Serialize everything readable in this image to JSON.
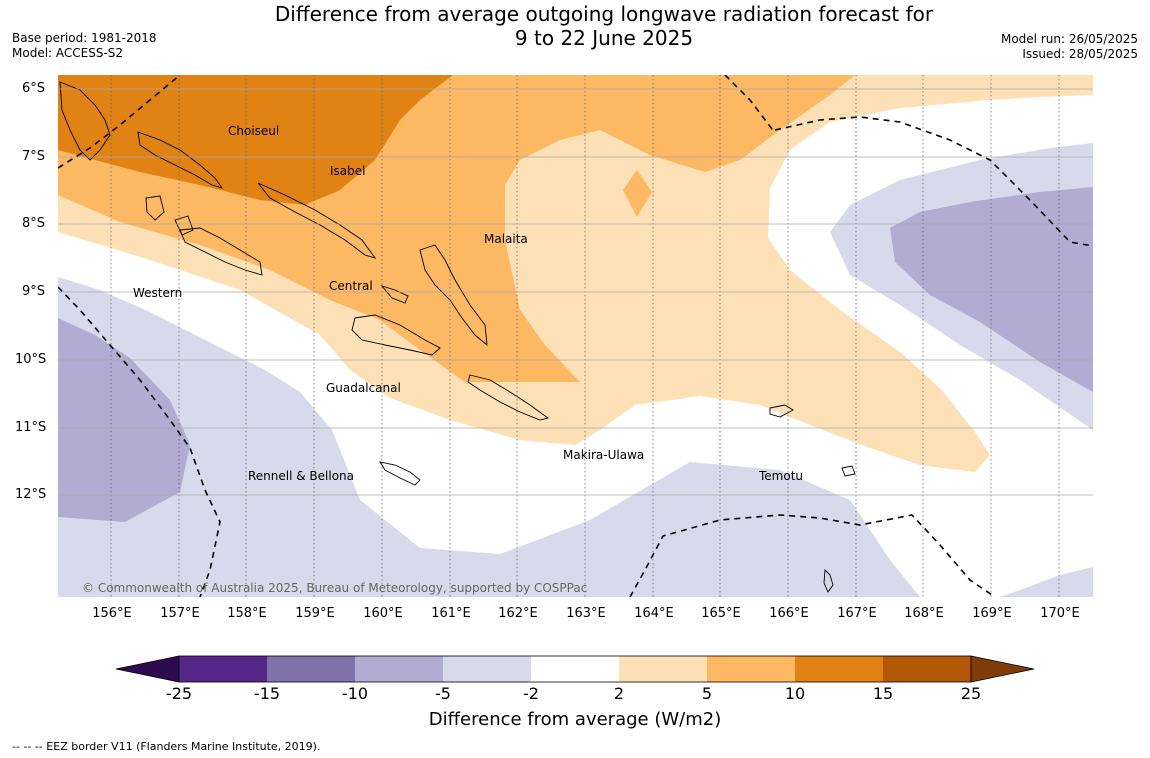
{
  "title_line1": "Difference from average outgoing longwave radiation forecast for",
  "title_line2": "9 to 22 June 2025",
  "base_period": "Base period: 1981-2018",
  "model": "Model: ACCESS-S2",
  "model_run": "Model run: 26/05/2025",
  "issued": "Issued: 28/05/2025",
  "copyright": "© Commonwealth of Australia 2025, Bureau of Meteorology, supported by COSPPac",
  "lat_labels": [
    "6°S",
    "7°S",
    "8°S",
    "9°S",
    "10°S",
    "11°S",
    "12°S"
  ],
  "lon_labels": [
    "156°E",
    "157°E",
    "158°E",
    "159°E",
    "160°E",
    "161°E",
    "162°E",
    "163°E",
    "164°E",
    "165°E",
    "166°E",
    "167°E",
    "168°E",
    "169°E",
    "170°E"
  ],
  "places": {
    "choiseul": "Choiseul",
    "isabel": "Isabel",
    "malaita": "Malaita",
    "western": "Western",
    "central": "Central",
    "guadalcanal": "Guadalcanal",
    "makira": "Makira-Ulawa",
    "temotu": "Temotu",
    "rennell": "Rennell & Bellona"
  },
  "colorbar": {
    "ticks": [
      "-25",
      "-15",
      "-10",
      "-5",
      "-2",
      "2",
      "5",
      "10",
      "15",
      "25"
    ],
    "colors": {
      "below_-25": "#2d0a4e",
      "-25_-15": "#542788",
      "-15_-10": "#8073ac",
      "-10_-5": "#b2abd2",
      "-5_-2": "#d8daeb",
      "-2_2": "#ffffff",
      "2_5": "#fee0b6",
      "5_10": "#fdb863",
      "10_15": "#e08214",
      "15_25": "#b35806",
      "above_25": "#7f3b08"
    },
    "title": "Difference from average (W/m2)"
  },
  "footnote": "--  --  -- EEZ border V11 (Flanders Marine Institute, 2019)."
}
